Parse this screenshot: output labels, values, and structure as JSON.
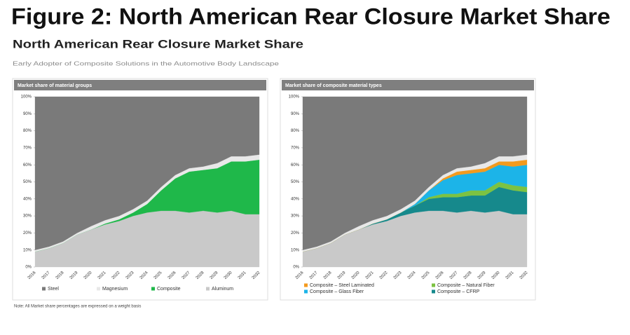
{
  "header": {
    "title": "Figure 2: North American Rear Closure Market Share",
    "subtitle": "North American Rear Closure Market Share",
    "description": "Early Adopter of Composite Solutions in the Automotive Body Landscape"
  },
  "chart_data": [
    {
      "type": "area",
      "stacked": true,
      "title": "Market share of material groups",
      "categories": [
        "2016",
        "2017",
        "2018",
        "2019",
        "2020",
        "2021",
        "2022",
        "2023",
        "2024",
        "2025",
        "2026",
        "2027",
        "2028",
        "2029",
        "2030",
        "2031",
        "2032"
      ],
      "ylim": [
        0,
        100
      ],
      "yticks": [
        {
          "value": 0,
          "label": "0%"
        },
        {
          "value": 10,
          "label": "10%"
        },
        {
          "value": 20,
          "label": "20%"
        },
        {
          "value": 30,
          "label": "30%"
        },
        {
          "value": 40,
          "label": "40%"
        },
        {
          "value": 50,
          "label": "50%"
        },
        {
          "value": 60,
          "label": "60%"
        },
        {
          "value": 70,
          "label": "70%"
        },
        {
          "value": 80,
          "label": "80%"
        },
        {
          "value": 90,
          "label": "90%"
        },
        {
          "value": 100,
          "label": "100%"
        }
      ],
      "series": [
        {
          "name": "Steel",
          "color": "#7a7a7a",
          "values": [
            90,
            88,
            85,
            80,
            76,
            72.5,
            70,
            66,
            61,
            53,
            46,
            42,
            41,
            39,
            35,
            35,
            34
          ]
        },
        {
          "name": "Magnesium",
          "color": "#e8e8e8",
          "values": [
            1,
            1,
            1,
            1,
            2,
            2,
            2,
            2,
            2,
            2,
            2,
            2,
            2,
            3,
            3,
            3,
            3
          ]
        },
        {
          "name": "Composite",
          "color": "#1fb84a",
          "values": [
            0,
            0,
            0,
            0,
            0,
            0.5,
            1,
            2,
            5,
            12,
            19,
            24,
            24,
            26,
            29,
            31,
            32
          ]
        },
        {
          "name": "Aluminum",
          "color": "#c9c9c9",
          "values": [
            9,
            11,
            14,
            19,
            22,
            25,
            27,
            30,
            32,
            33,
            33,
            32,
            33,
            32,
            33,
            31,
            31
          ]
        }
      ]
    },
    {
      "type": "area",
      "stacked": true,
      "title": "Market share of composite material types",
      "categories": [
        "2016",
        "2017",
        "2018",
        "2019",
        "2020",
        "2021",
        "2022",
        "2023",
        "2024",
        "2025",
        "2026",
        "2027",
        "2028",
        "2029",
        "2030",
        "2031",
        "2032"
      ],
      "ylim": [
        0,
        100
      ],
      "yticks": [
        {
          "value": 0,
          "label": "0%"
        },
        {
          "value": 10,
          "label": "10%"
        },
        {
          "value": 20,
          "label": "20%"
        },
        {
          "value": 30,
          "label": "30%"
        },
        {
          "value": 40,
          "label": "40%"
        },
        {
          "value": 50,
          "label": "50%"
        },
        {
          "value": 60,
          "label": "60%"
        },
        {
          "value": 70,
          "label": "70%"
        },
        {
          "value": 80,
          "label": "80%"
        },
        {
          "value": 90,
          "label": "90%"
        },
        {
          "value": 100,
          "label": "100%"
        }
      ],
      "series": [
        {
          "name": "Composite – Steel Laminated",
          "color": "#f39a1e",
          "values": [
            0,
            0,
            0,
            0,
            0,
            0,
            0,
            0,
            0,
            0,
            1,
            2,
            2,
            2,
            2,
            3,
            3
          ]
        },
        {
          "name": "Composite – Natural Fiber",
          "color": "#7cc242",
          "values": [
            0,
            0,
            0,
            0,
            0,
            0,
            0,
            0,
            0,
            1,
            2,
            2,
            3,
            3,
            3,
            3,
            3
          ]
        },
        {
          "name": "Composite – Glass Fiber",
          "color": "#1cb4e8",
          "values": [
            0,
            0,
            0,
            0,
            0,
            0,
            0,
            0,
            1,
            4,
            8,
            11,
            10,
            11,
            10,
            11,
            13
          ]
        },
        {
          "name": "Composite – CFRP",
          "color": "#16898c",
          "values": [
            0,
            0,
            0,
            0,
            0,
            0.5,
            1,
            2,
            4,
            7,
            8,
            9,
            9,
            10,
            14,
            14,
            13
          ]
        }
      ]
    }
  ],
  "note": "Note: All Market share percentages are expressed on a weight basis"
}
